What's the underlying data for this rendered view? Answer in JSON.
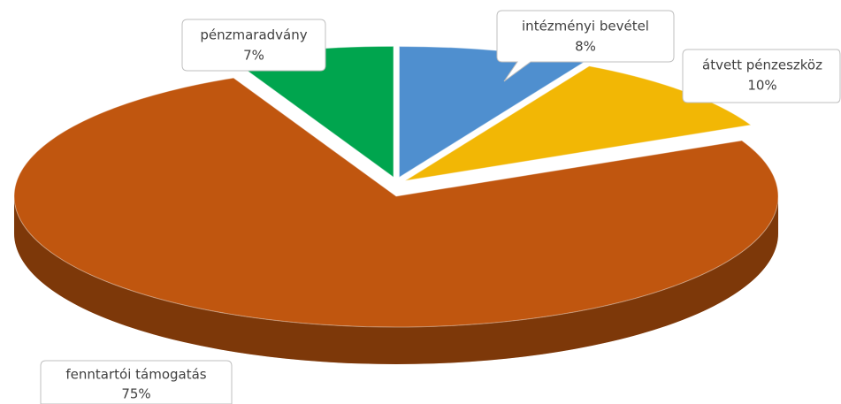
{
  "chart_data": {
    "type": "pie",
    "categories": [
      "intézményi bevétel",
      "átvett pénzeszköz",
      "fenntartói támogatás",
      "pénzmaradvány"
    ],
    "values": [
      8,
      10,
      75,
      7
    ],
    "value_labels": [
      "8%",
      "10%",
      "75%",
      "7%"
    ],
    "colors": [
      "#4f8fcf",
      "#f2b705",
      "#c0560f",
      "#00a54e"
    ]
  }
}
